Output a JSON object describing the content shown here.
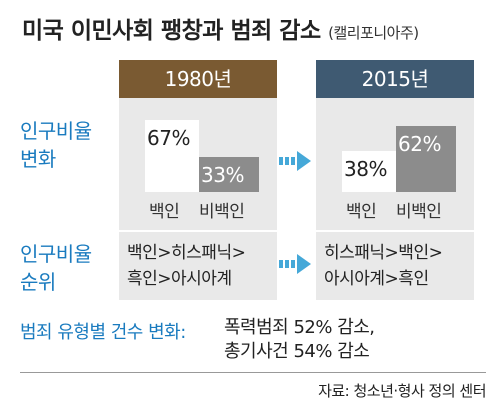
{
  "title": "미국 이민사회 팽창과 범죄 감소",
  "subtitle": "(캘리포니아주)",
  "colors": {
    "panel_1980_header": "#7a5a32",
    "panel_2015_header": "#3f5a72",
    "panel_bg": "#e9e9e9",
    "bar_white": "#ffffff",
    "bar_nonwhite": "#8c8c8c",
    "accent_blue": "#1a7bbf",
    "arrow": "#45a8d8"
  },
  "icons": [
    "right-arrow-icon"
  ],
  "rows": {
    "population_ratio_label": [
      "인구비율",
      "변화"
    ],
    "population_rank_label": [
      "인구비율",
      "순위"
    ]
  },
  "chart_data": [
    {
      "type": "bar",
      "title": "1980년",
      "categories": [
        "백인",
        "비백인"
      ],
      "values": [
        67,
        33
      ],
      "value_labels": [
        "67%",
        "33%"
      ],
      "ylim": [
        0,
        100
      ]
    },
    {
      "type": "bar",
      "title": "2015년",
      "categories": [
        "백인",
        "비백인"
      ],
      "values": [
        38,
        62
      ],
      "value_labels": [
        "38%",
        "62%"
      ],
      "ylim": [
        0,
        100
      ]
    }
  ],
  "rank": {
    "y1980": [
      "백인>히스패닉>",
      "흑인>아시아계"
    ],
    "y2015": [
      "히스패닉>백인>",
      "아시아계>흑인"
    ]
  },
  "crime": {
    "label": "범죄 유형별 건수 변화:",
    "lines": [
      "폭력범죄 52% 감소,",
      "총기사건 54% 감소"
    ]
  },
  "source": "자료: 청소년·형사 정의 센터"
}
